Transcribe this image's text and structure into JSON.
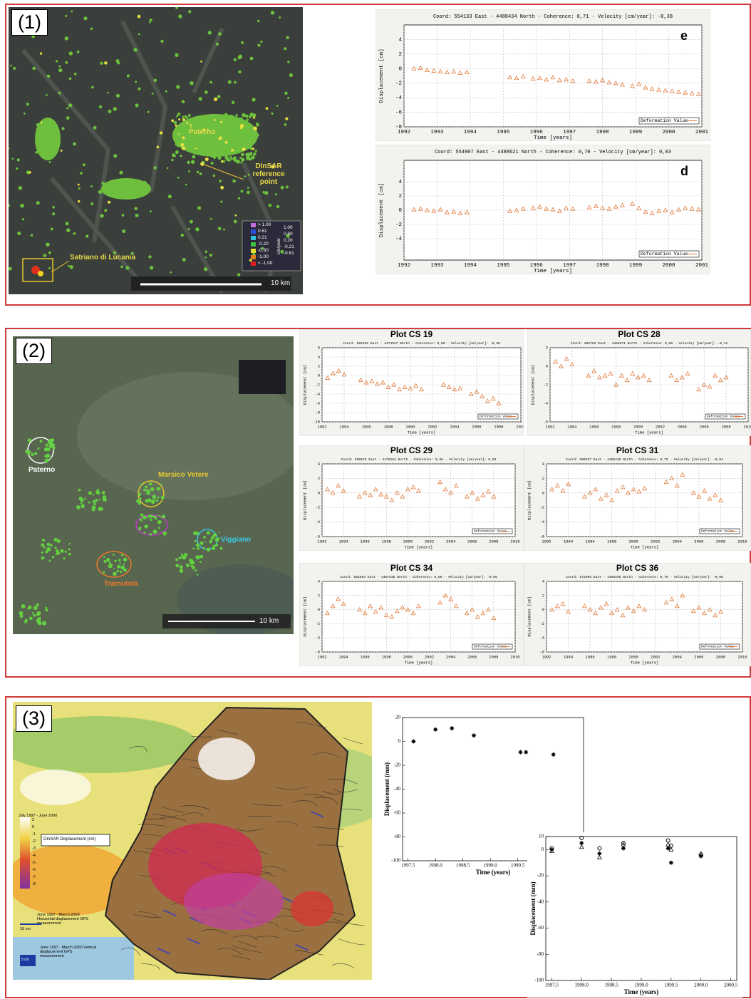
{
  "panels": [
    {
      "label": "(1)",
      "map": {
        "places": [
          "Paterno",
          "DInSAR reference point",
          "Satriano di Lucania"
        ],
        "scale": "10 km",
        "legend_unit": "cm/year",
        "legend_left": [
          "> 1.00",
          "0.61",
          "0.21",
          "-0.20",
          "-0.60",
          "-1.00",
          "< -1.00"
        ],
        "legend_right": [
          "1.00",
          "0.60",
          "0.20",
          "-0.21",
          "-0.61"
        ]
      }
    },
    {
      "label": "(2)",
      "map": {
        "places": [
          "Paterno",
          "Marsico Vetere",
          "Viggiano",
          "Tramutola"
        ],
        "scale": "10 km"
      }
    },
    {
      "label": "(3)",
      "map": {
        "period": "July 1997 - June 2000",
        "legend_values": [
          "2",
          "0",
          "-1",
          "-2",
          "-3",
          "-4",
          "-5",
          "-6",
          "-7",
          "-8"
        ],
        "legend_title": "DInSAR Displacement (cm)",
        "horizontal_scale": "10 cm",
        "horizontal_note": "June 1997 - March 2000 Horizontal displacement GPS measurement",
        "vertical_scale": "5 cm",
        "vertical_note": "June 1997 - March 2000 Vertical displacement GPS measurement"
      }
    }
  ],
  "chart_data": [
    {
      "type": "scatter",
      "title": "Coord: 554133 East - 4488434 North - Coherence: 0,71 - Velocity [cm/year]: -0,38",
      "annotation": "e",
      "xlabel": "Time [years]",
      "ylabel": "Displacement [cm]",
      "x": [
        1992.3,
        1992.5,
        1992.7,
        1992.9,
        1993.1,
        1993.3,
        1993.5,
        1993.7,
        1993.9,
        1995.2,
        1995.4,
        1995.6,
        1995.9,
        1996.1,
        1996.3,
        1996.5,
        1996.7,
        1996.9,
        1997.1,
        1997.6,
        1997.8,
        1998.0,
        1998.2,
        1998.4,
        1998.6,
        1998.9,
        1999.1,
        1999.3,
        1999.5,
        1999.7,
        1999.9,
        2000.1,
        2000.3,
        2000.5,
        2000.7,
        2000.9
      ],
      "series": [
        {
          "name": "Deformation Value",
          "color": "#e07a3a",
          "marker": "triangle",
          "values": [
            0.0,
            0.1,
            -0.2,
            -0.3,
            -0.4,
            -0.5,
            -0.4,
            -0.6,
            -0.5,
            -1.2,
            -1.3,
            -1.1,
            -1.4,
            -1.3,
            -1.5,
            -1.2,
            -1.6,
            -1.5,
            -1.7,
            -1.7,
            -1.8,
            -1.6,
            -1.9,
            -2.0,
            -2.2,
            -2.4,
            -2.1,
            -2.6,
            -2.8,
            -2.9,
            -3.0,
            -3.1,
            -3.2,
            -3.3,
            -3.4,
            -3.5
          ]
        }
      ],
      "xlim": [
        1992,
        2001
      ],
      "xticks": [
        1992,
        1993,
        1994,
        1995,
        1996,
        1997,
        1998,
        1999,
        2000,
        2001
      ],
      "ylim": [
        -8,
        6
      ],
      "yticks": [
        -8,
        -6,
        -4,
        -2,
        0,
        2,
        4
      ],
      "grid": true,
      "legend": "lower right"
    },
    {
      "type": "scatter",
      "title": "Coord: 554907 East - 4488621 North - Coherence: 0,70 - Velocity [cm/year]: 0,03",
      "annotation": "d",
      "xlabel": "Time [years]",
      "ylabel": "Displacement [cm]",
      "x": [
        1992.3,
        1992.5,
        1992.7,
        1992.9,
        1993.1,
        1993.3,
        1993.5,
        1993.7,
        1993.9,
        1995.2,
        1995.4,
        1995.6,
        1995.9,
        1996.1,
        1996.3,
        1996.5,
        1996.7,
        1996.9,
        1997.1,
        1997.6,
        1997.8,
        1998.0,
        1998.2,
        1998.4,
        1998.6,
        1998.9,
        1999.1,
        1999.3,
        1999.5,
        1999.7,
        1999.9,
        2000.1,
        2000.3,
        2000.5,
        2000.7,
        2000.9
      ],
      "series": [
        {
          "name": "Deformation Value",
          "color": "#e07a3a",
          "marker": "triangle",
          "values": [
            0.1,
            0.2,
            0.0,
            -0.1,
            0.1,
            -0.3,
            -0.2,
            -0.4,
            -0.3,
            -0.1,
            0.0,
            0.2,
            0.3,
            0.5,
            0.2,
            0.1,
            -0.1,
            0.3,
            0.2,
            0.4,
            0.6,
            0.3,
            0.2,
            0.5,
            0.7,
            0.9,
            0.3,
            -0.2,
            -0.4,
            -0.1,
            0.0,
            -0.3,
            0.1,
            0.3,
            0.2,
            0.1
          ]
        }
      ],
      "xlim": [
        1992,
        2001
      ],
      "xticks": [
        1992,
        1993,
        1994,
        1995,
        1996,
        1997,
        1998,
        1999,
        2000,
        2001
      ],
      "ylim": [
        -7,
        7
      ],
      "yticks": [
        -4,
        -2,
        0,
        2,
        4
      ],
      "grid": true,
      "legend": "lower right"
    },
    {
      "type": "scatter",
      "heading": "Plot CS 19",
      "title": "Coord: 565105 East - 4474937 North - Coherence: 0,89 - Velocity [cm/year]: -0,38",
      "xlabel": "Time [years]",
      "ylabel": "Displacement [cm]",
      "x": [
        1992.5,
        1993.0,
        1993.5,
        1994.0,
        1995.5,
        1996.0,
        1996.5,
        1997.0,
        1997.5,
        1998.0,
        1998.5,
        1999.0,
        1999.5,
        2000.0,
        2000.5,
        2001.0,
        2003.0,
        2003.5,
        2004.0,
        2004.5,
        2005.5,
        2006.0,
        2006.5,
        2007.0,
        2007.5,
        2008.0
      ],
      "series": [
        {
          "name": "Deformation Value",
          "color": "#e07a3a",
          "marker": "triangle",
          "values": [
            -0.5,
            0.5,
            1.0,
            0.2,
            -1.0,
            -1.5,
            -1.2,
            -1.8,
            -1.5,
            -2.5,
            -2.0,
            -3.0,
            -2.5,
            -2.8,
            -2.2,
            -3.0,
            -2.0,
            -2.5,
            -3.0,
            -2.8,
            -4.0,
            -3.5,
            -4.5,
            -5.5,
            -5.0,
            -6.0
          ]
        }
      ],
      "xlim": [
        1992,
        2010
      ],
      "xticks": [
        1992,
        1994,
        1996,
        1998,
        2000,
        2002,
        2004,
        2006,
        2008,
        2010
      ],
      "ylim": [
        -10,
        6
      ],
      "yticks": [
        -10,
        -8,
        -6,
        -4,
        -2,
        0,
        2,
        4,
        6
      ],
      "grid": true,
      "legend": "lower right"
    },
    {
      "type": "scatter",
      "heading": "Plot CS 28",
      "title": "Coord: 582703 East - 4468971 North - Coherence: 0,89 - Velocity [cm/year]: -0,12",
      "xlabel": "Time [years]",
      "ylabel": "Displacement [cm]",
      "x": [
        1992.5,
        1993.0,
        1993.5,
        1994.0,
        1995.5,
        1996.0,
        1996.5,
        1997.0,
        1997.5,
        1998.0,
        1998.5,
        1999.0,
        1999.5,
        2000.0,
        2000.5,
        2001.0,
        2003.0,
        2003.5,
        2004.0,
        2004.5,
        2005.5,
        2006.0,
        2006.5,
        2007.0,
        2007.5,
        2008.0
      ],
      "series": [
        {
          "name": "Deformation Value",
          "color": "#e07a3a",
          "marker": "triangle",
          "values": [
            0.5,
            0.0,
            0.8,
            0.2,
            -1.0,
            -0.5,
            -1.2,
            -1.0,
            -0.8,
            -2.0,
            -1.0,
            -1.5,
            -0.8,
            -1.2,
            -1.0,
            -1.5,
            -1.0,
            -1.5,
            -1.2,
            -0.8,
            -2.5,
            -2.0,
            -2.2,
            -1.0,
            -1.5,
            -1.2
          ]
        }
      ],
      "xlim": [
        1992,
        2010
      ],
      "xticks": [
        1992,
        1994,
        1996,
        1998,
        2000,
        2002,
        2004,
        2006,
        2008,
        2010
      ],
      "ylim": [
        -6,
        2
      ],
      "yticks": [
        -6,
        -4,
        -2,
        0,
        2
      ],
      "grid": true,
      "legend": "lower right"
    },
    {
      "type": "scatter",
      "heading": "Plot CS 29",
      "title": "Coord: 569625 East - 4475264 North - Coherence: 0,86 - Velocity [cm/year]: 0,03",
      "xlabel": "Time [years]",
      "ylabel": "Displacement [cm]",
      "x": [
        1992.5,
        1993.0,
        1993.5,
        1994.0,
        1995.5,
        1996.0,
        1996.5,
        1997.0,
        1997.5,
        1998.0,
        1998.5,
        1999.0,
        1999.5,
        2000.0,
        2000.5,
        2001.0,
        2003.0,
        2003.5,
        2004.0,
        2004.5,
        2005.5,
        2006.0,
        2006.5,
        2007.0,
        2007.5,
        2008.0
      ],
      "series": [
        {
          "name": "Deformation Value",
          "color": "#e07a3a",
          "marker": "triangle",
          "values": [
            0.5,
            0.0,
            1.0,
            0.3,
            -0.5,
            0.0,
            -0.3,
            0.5,
            -0.2,
            -0.5,
            -1.0,
            0.0,
            -0.5,
            0.5,
            0.8,
            0.3,
            1.5,
            0.5,
            0.0,
            1.0,
            -0.5,
            0.0,
            -0.8,
            -0.3,
            0.2,
            -0.5
          ]
        }
      ],
      "xlim": [
        1992,
        2010
      ],
      "xticks": [
        1992,
        1994,
        1996,
        1998,
        2000,
        2002,
        2004,
        2006,
        2008,
        2010
      ],
      "ylim": [
        -6,
        4
      ],
      "yticks": [
        -6,
        -4,
        -2,
        0,
        2,
        4
      ],
      "grid": true,
      "legend": "lower right"
    },
    {
      "type": "scatter",
      "heading": "Plot CS 31",
      "title": "Coord: 580297 East - 4465445 North - Coherence: 0,79 - Velocity [cm/year]: -0,04",
      "xlabel": "Time [years]",
      "ylabel": "Displacement [cm]",
      "x": [
        1992.5,
        1993.0,
        1993.5,
        1994.0,
        1995.5,
        1996.0,
        1996.5,
        1997.0,
        1997.5,
        1998.0,
        1998.5,
        1999.0,
        1999.5,
        2000.0,
        2000.5,
        2001.0,
        2003.0,
        2003.5,
        2004.0,
        2004.5,
        2005.5,
        2006.0,
        2006.5,
        2007.0,
        2007.5,
        2008.0
      ],
      "series": [
        {
          "name": "Deformation Value",
          "color": "#e07a3a",
          "marker": "triangle",
          "values": [
            0.5,
            1.0,
            0.3,
            1.2,
            -0.5,
            0.0,
            0.5,
            -0.8,
            -0.3,
            -1.0,
            0.3,
            0.8,
            0.0,
            0.5,
            0.2,
            0.6,
            1.5,
            2.0,
            1.0,
            2.5,
            0.0,
            -0.5,
            0.3,
            -0.8,
            -0.3,
            -1.0
          ]
        }
      ],
      "xlim": [
        1992,
        2010
      ],
      "xticks": [
        1992,
        1994,
        1996,
        1998,
        2000,
        2002,
        2004,
        2006,
        2008,
        2010
      ],
      "ylim": [
        -6,
        4
      ],
      "yticks": [
        -6,
        -4,
        -2,
        0,
        2,
        4
      ],
      "grid": true,
      "legend": "lower right"
    },
    {
      "type": "scatter",
      "heading": "Plot CS 34",
      "title": "Coord: 582894 East - 4467538 North - Coherence: 0,89 - Velocity [cm/year]: -0,05",
      "xlabel": "Time [years]",
      "ylabel": "Displacement [cm]",
      "x": [
        1992.5,
        1993.0,
        1993.5,
        1994.0,
        1995.5,
        1996.0,
        1996.5,
        1997.0,
        1997.5,
        1998.0,
        1998.5,
        1999.0,
        1999.5,
        2000.0,
        2000.5,
        2001.0,
        2003.0,
        2003.5,
        2004.0,
        2004.5,
        2005.5,
        2006.0,
        2006.5,
        2007.0,
        2007.5,
        2008.0
      ],
      "series": [
        {
          "name": "Deformation Value",
          "color": "#e07a3a",
          "marker": "triangle",
          "values": [
            -0.5,
            0.5,
            1.5,
            0.8,
            0.0,
            -0.5,
            0.5,
            -0.3,
            0.3,
            -0.8,
            -1.0,
            -0.2,
            0.3,
            0.0,
            -0.5,
            0.5,
            1.0,
            2.0,
            1.5,
            0.5,
            -0.5,
            0.0,
            -1.0,
            -0.5,
            0.0,
            -1.2
          ]
        }
      ],
      "xlim": [
        1992,
        2010
      ],
      "xticks": [
        1992,
        1994,
        1996,
        1998,
        2000,
        2002,
        2004,
        2006,
        2008,
        2010
      ],
      "ylim": [
        -6,
        4
      ],
      "yticks": [
        -6,
        -4,
        -2,
        0,
        2,
        4
      ],
      "grid": true,
      "legend": "lower right"
    },
    {
      "type": "scatter",
      "heading": "Plot CS 36",
      "title": "Coord: 572906 East - 4468256 North - Coherence: 0,75 - Velocity [cm/year]: -0,08",
      "xlabel": "Time [years]",
      "ylabel": "Displacement [cm]",
      "x": [
        1992.5,
        1993.0,
        1993.5,
        1994.0,
        1995.5,
        1996.0,
        1996.5,
        1997.0,
        1997.5,
        1998.0,
        1998.5,
        1999.0,
        1999.5,
        2000.0,
        2000.5,
        2001.0,
        2003.0,
        2003.5,
        2004.0,
        2004.5,
        2005.5,
        2006.0,
        2006.5,
        2007.0,
        2007.5,
        2008.0
      ],
      "series": [
        {
          "name": "Deformation Value",
          "color": "#e07a3a",
          "marker": "triangle",
          "values": [
            0.0,
            0.5,
            0.8,
            -0.3,
            0.5,
            0.0,
            -0.5,
            0.3,
            0.8,
            -0.5,
            0.0,
            -0.8,
            0.3,
            -0.2,
            0.5,
            0.0,
            1.0,
            1.5,
            0.5,
            2.0,
            -0.2,
            0.3,
            -0.5,
            0.0,
            -0.8,
            -0.3
          ]
        }
      ],
      "xlim": [
        1992,
        2010
      ],
      "xticks": [
        1992,
        1994,
        1996,
        1998,
        2000,
        2002,
        2004,
        2006,
        2008,
        2010
      ],
      "ylim": [
        -6,
        4
      ],
      "yticks": [
        -6,
        -4,
        -2,
        0,
        2,
        4
      ],
      "grid": true,
      "legend": "lower right"
    },
    {
      "type": "scatter",
      "xlabel": "Time (years)",
      "ylabel": "Displacement (mm)",
      "x": [
        1997.6,
        1998.0,
        1998.3,
        1998.7,
        1999.55,
        1999.65,
        2000.15
      ],
      "series": [
        {
          "color": "#000000",
          "marker": "asterisk",
          "values": [
            0,
            10,
            11,
            5,
            -9,
            -9,
            -11
          ]
        }
      ],
      "xlim": [
        1997.4,
        2000.7
      ],
      "xticks": [
        {
          "value": 1997.5,
          "label": "1997.5"
        },
        {
          "value": 1998,
          "label": "1998.0"
        },
        {
          "value": 1998.5,
          "label": "1998.5"
        },
        {
          "value": 1999,
          "label": "1999.0"
        },
        {
          "value": 1999.5,
          "label": "1999.5"
        },
        {
          "value": 2000,
          "label": "2000.0"
        },
        {
          "value": 2000.5,
          "label": "2000.5"
        }
      ],
      "ylim": [
        -100,
        20
      ],
      "yticks": [
        -100,
        -80,
        -60,
        -40,
        -20,
        0,
        20
      ],
      "grid": false
    },
    {
      "type": "scatter",
      "xlabel": "Time (years)",
      "ylabel": "Displacement (mm)",
      "x": [
        1997.5,
        1998.0,
        1998.3,
        1998.7,
        1999.45,
        1999.5,
        2000.0
      ],
      "series": [
        {
          "color": "#000000",
          "marker": "asterisk",
          "values": [
            0,
            5,
            -3,
            1,
            1,
            -10,
            -5
          ]
        },
        {
          "color": "#000000",
          "marker": "circle",
          "values": [
            1,
            9,
            1,
            5,
            7,
            3,
            -4
          ]
        },
        {
          "color": "#000000",
          "marker": "triangle",
          "values": [
            -1,
            2,
            -6,
            4,
            4,
            0,
            -3
          ]
        }
      ],
      "xlim": [
        1997.4,
        2000.6
      ],
      "xticks": [
        {
          "value": 1997.5,
          "label": "1997.5"
        },
        {
          "value": 1998,
          "label": "1998.0"
        },
        {
          "value": 1998.5,
          "label": "1998.5"
        },
        {
          "value": 1999,
          "label": "1999.0"
        },
        {
          "value": 1999.5,
          "label": "1999.5"
        },
        {
          "value": 2000,
          "label": "2000.0"
        },
        {
          "value": 2000.5,
          "label": "2000.5"
        }
      ],
      "ylim": [
        -100,
        10
      ],
      "yticks": [
        -100,
        -80,
        -60,
        -40,
        -20,
        0,
        10
      ],
      "grid": false
    }
  ]
}
